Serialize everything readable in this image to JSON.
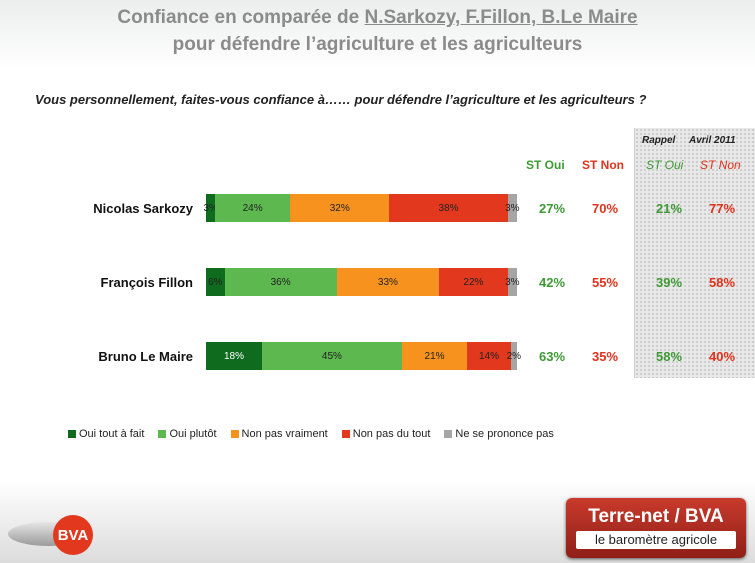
{
  "title": {
    "line1_prefix": "Confiance en comparée de ",
    "line1_names": "N.Sarkozy, F.Fillon, B.Le Maire",
    "line2": "pour défendre l’agriculture et les agriculteurs"
  },
  "question": "Vous personnellement, faites-vous confiance à…… pour défendre l’agriculture et les agriculteurs ?",
  "headers": {
    "st_oui": "ST Oui",
    "st_non": "ST Non",
    "rappel": "Rappel",
    "avril": "Avril 2011",
    "rappel_st_oui": "ST Oui",
    "rappel_st_non": "ST Non"
  },
  "colors": {
    "oui_tout_a_fait": "#0f6b1e",
    "oui_plutot": "#5cb84f",
    "non_pas_vraiment": "#f7921e",
    "non_pas_du_tout": "#e2381e",
    "nsp": "#a5a5a5",
    "st_oui_text": "#3e9a35",
    "st_non_text": "#e0321c"
  },
  "chart_data": {
    "type": "bar",
    "orientation": "horizontal-stacked",
    "categories": [
      "Nicolas Sarkozy",
      "François Fillon",
      "Bruno Le Maire"
    ],
    "series": [
      {
        "name": "Oui tout à fait",
        "values": [
          3,
          6,
          18
        ],
        "labels": [
          "3%",
          "6%",
          "18%"
        ]
      },
      {
        "name": "Oui plutôt",
        "values": [
          24,
          36,
          45
        ],
        "labels": [
          "24%",
          "36%",
          "45%"
        ]
      },
      {
        "name": "Non pas vraiment",
        "values": [
          32,
          33,
          21
        ],
        "labels": [
          "32%",
          "33%",
          "21%"
        ]
      },
      {
        "name": "Non pas du tout",
        "values": [
          38,
          22,
          14
        ],
        "labels": [
          "38%",
          "22%",
          "14%"
        ]
      },
      {
        "name": "Ne se prononce pas",
        "values": [
          3,
          3,
          2
        ],
        "labels": [
          "3%",
          "3%",
          "2%"
        ]
      }
    ],
    "st_oui": [
      "27%",
      "42%",
      "63%"
    ],
    "st_non": [
      "70%",
      "55%",
      "35%"
    ],
    "rappel_avril_2011": {
      "st_oui": [
        "21%",
        "39%",
        "58%"
      ],
      "st_non": [
        "77%",
        "58%",
        "40%"
      ]
    },
    "legend_position": "bottom"
  },
  "logos": {
    "bva": "BVA",
    "terrenet_line1": "Terre-net / BVA",
    "terrenet_line2": "le baromètre agricole"
  }
}
